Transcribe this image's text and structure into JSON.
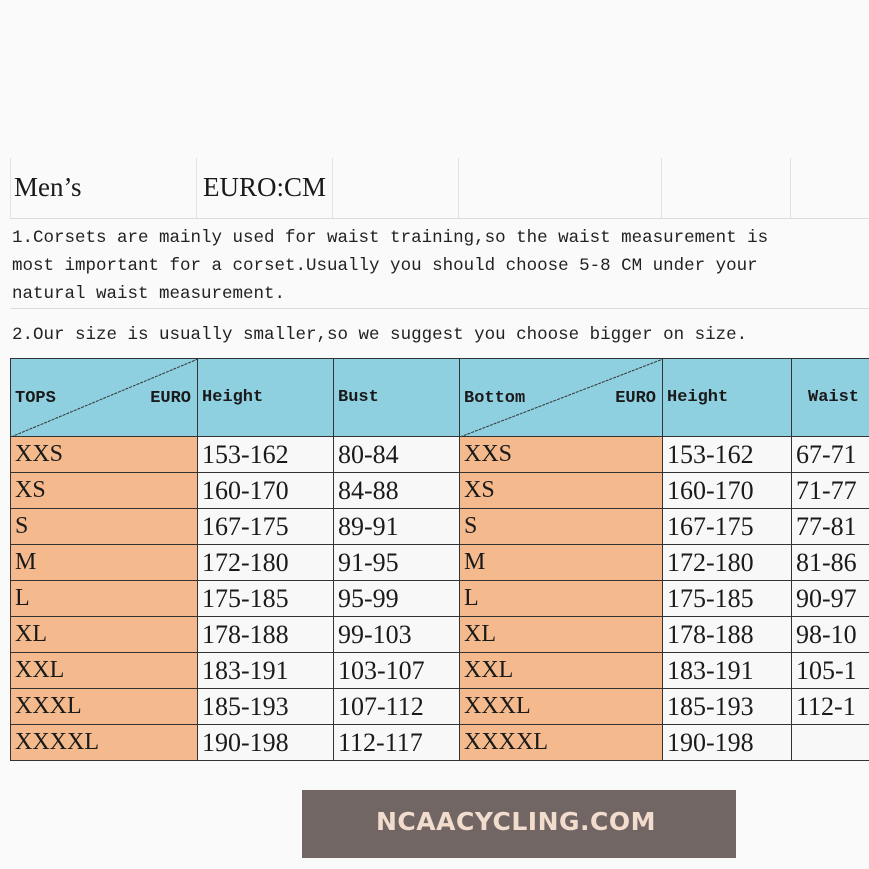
{
  "header": {
    "title": "Men’s",
    "unit": "EURO:CM"
  },
  "notes": [
    "1.Corsets are mainly used for waist training,so the waist measurement is",
    "most important for a corset.Usually you should choose 5-8 CM under your",
    "natural waist measurement.",
    "2.Our size is usually smaller,so we suggest you choose bigger on size."
  ],
  "table": {
    "headers": {
      "tops": "TOPS",
      "tops_euro": "EURO",
      "height": "Height",
      "bust": "Bust",
      "bottom": "Bottom",
      "bottom_euro": "EURO",
      "height2": "Height",
      "waist": "Waist"
    },
    "rows": [
      {
        "size": "XXS",
        "height": "153-162",
        "bust": "80-84",
        "bsize": "XXS",
        "bheight": "153-162",
        "waist": "67-71"
      },
      {
        "size": "XS",
        "height": "160-170",
        "bust": "84-88",
        "bsize": "XS",
        "bheight": "160-170",
        "waist": "71-77"
      },
      {
        "size": "S",
        "height": "167-175",
        "bust": "89-91",
        "bsize": "S",
        "bheight": "167-175",
        "waist": "77-81"
      },
      {
        "size": "M",
        "height": "172-180",
        "bust": "91-95",
        "bsize": "M",
        "bheight": "172-180",
        "waist": "81-86"
      },
      {
        "size": "L",
        "height": "175-185",
        "bust": "95-99",
        "bsize": "L",
        "bheight": "175-185",
        "waist": "90-97"
      },
      {
        "size": "XL",
        "height": "178-188",
        "bust": "99-103",
        "bsize": "XL",
        "bheight": "178-188",
        "waist": "98-10"
      },
      {
        "size": "XXL",
        "height": "183-191",
        "bust": "103-107",
        "bsize": "XXL",
        "bheight": "183-191",
        "waist": "105-1"
      },
      {
        "size": "XXXL",
        "height": "185-193",
        "bust": "107-112",
        "bsize": "XXXL",
        "bheight": "185-193",
        "waist": "112-1"
      },
      {
        "size": "XXXXL",
        "height": "190-198",
        "bust": "112-117",
        "bsize": "XXXXL",
        "bheight": "190-198",
        "waist": ""
      }
    ]
  },
  "watermark": "NCAACYCLING.COM",
  "colors": {
    "header_bg": "#8ecfe0",
    "size_bg": "#f4b98c"
  }
}
